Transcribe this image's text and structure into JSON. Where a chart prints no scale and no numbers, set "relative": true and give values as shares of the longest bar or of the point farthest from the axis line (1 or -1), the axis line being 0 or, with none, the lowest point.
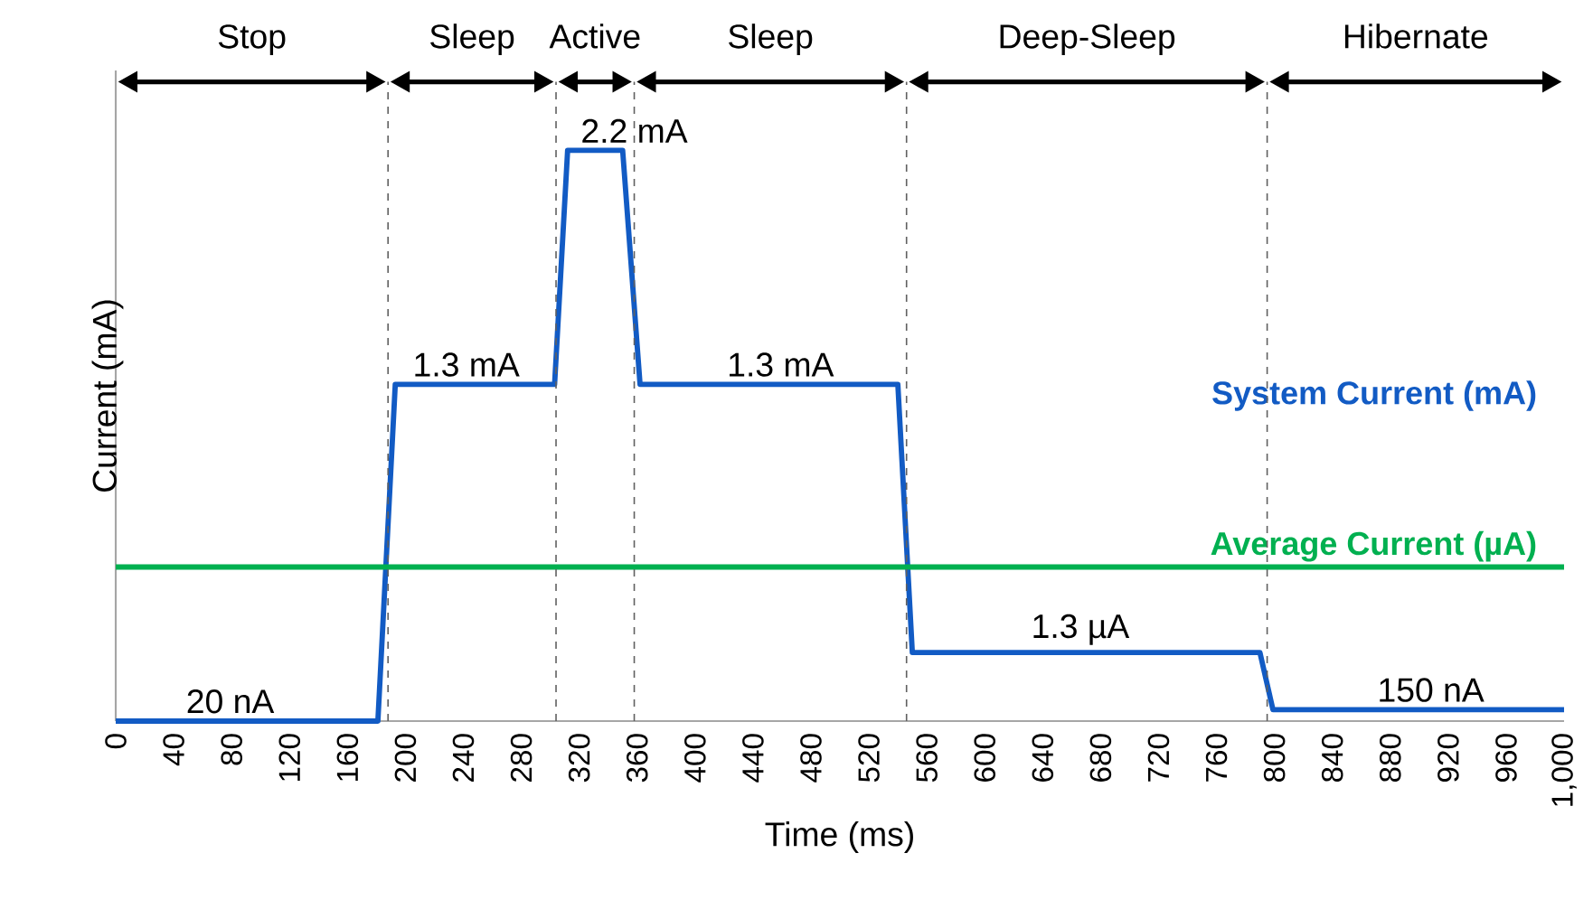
{
  "chart_data": {
    "type": "line",
    "relative": true,
    "xlabel": "Time (ms)",
    "ylabel": "Current (mA)",
    "xlim": [
      0,
      1000
    ],
    "xticks": [
      0,
      40,
      80,
      120,
      160,
      200,
      240,
      280,
      320,
      360,
      400,
      440,
      480,
      520,
      560,
      600,
      640,
      680,
      720,
      760,
      800,
      840,
      880,
      920,
      960,
      {
        "value": 1000,
        "label": "1,000"
      }
    ],
    "grid": false,
    "legend": false,
    "marker": "none",
    "line_style": "solid",
    "series": [
      {
        "name": "System Current (mA)",
        "color": "#125bc4",
        "x": [
          0,
          181,
          193,
          303,
          312,
          350,
          362,
          540,
          550,
          790,
          799,
          1000
        ],
        "values": [
          0,
          0,
          0.59,
          0.59,
          1,
          1,
          0.59,
          0.59,
          0.12,
          0.12,
          0.02,
          0.02
        ]
      },
      {
        "name": "Average Current (µA)",
        "color": "#00b050",
        "x": [
          0,
          1000
        ],
        "values": [
          0.27,
          0.27
        ]
      }
    ],
    "ref_lines": [
      {
        "axis": "x",
        "value": 188,
        "line_style": "dashed",
        "color": "#606060"
      },
      {
        "axis": "x",
        "value": 304,
        "line_style": "dashed",
        "color": "#606060"
      },
      {
        "axis": "x",
        "value": 358,
        "line_style": "dashed",
        "color": "#606060"
      },
      {
        "axis": "x",
        "value": 546,
        "line_style": "dashed",
        "color": "#606060"
      },
      {
        "axis": "x",
        "value": 795,
        "line_style": "dashed",
        "color": "#606060"
      }
    ],
    "annotations": [
      "Stop",
      "Sleep",
      "Active",
      "Sleep",
      "Deep-Sleep",
      "Hibernate",
      {
        "text": "20 nA",
        "x": 79,
        "y": 0
      },
      {
        "text": "1.3 mA",
        "x": 242,
        "y": 0.59
      },
      {
        "text": "2.2 mA",
        "x": 358,
        "y": 1
      },
      {
        "text": "1.3 mA",
        "x": 459,
        "y": 0.59
      },
      {
        "text": "1.3 µA",
        "x": 666,
        "y": 0.12
      },
      {
        "text": "150 nA",
        "x": 908,
        "y": 0.02
      }
    ]
  }
}
